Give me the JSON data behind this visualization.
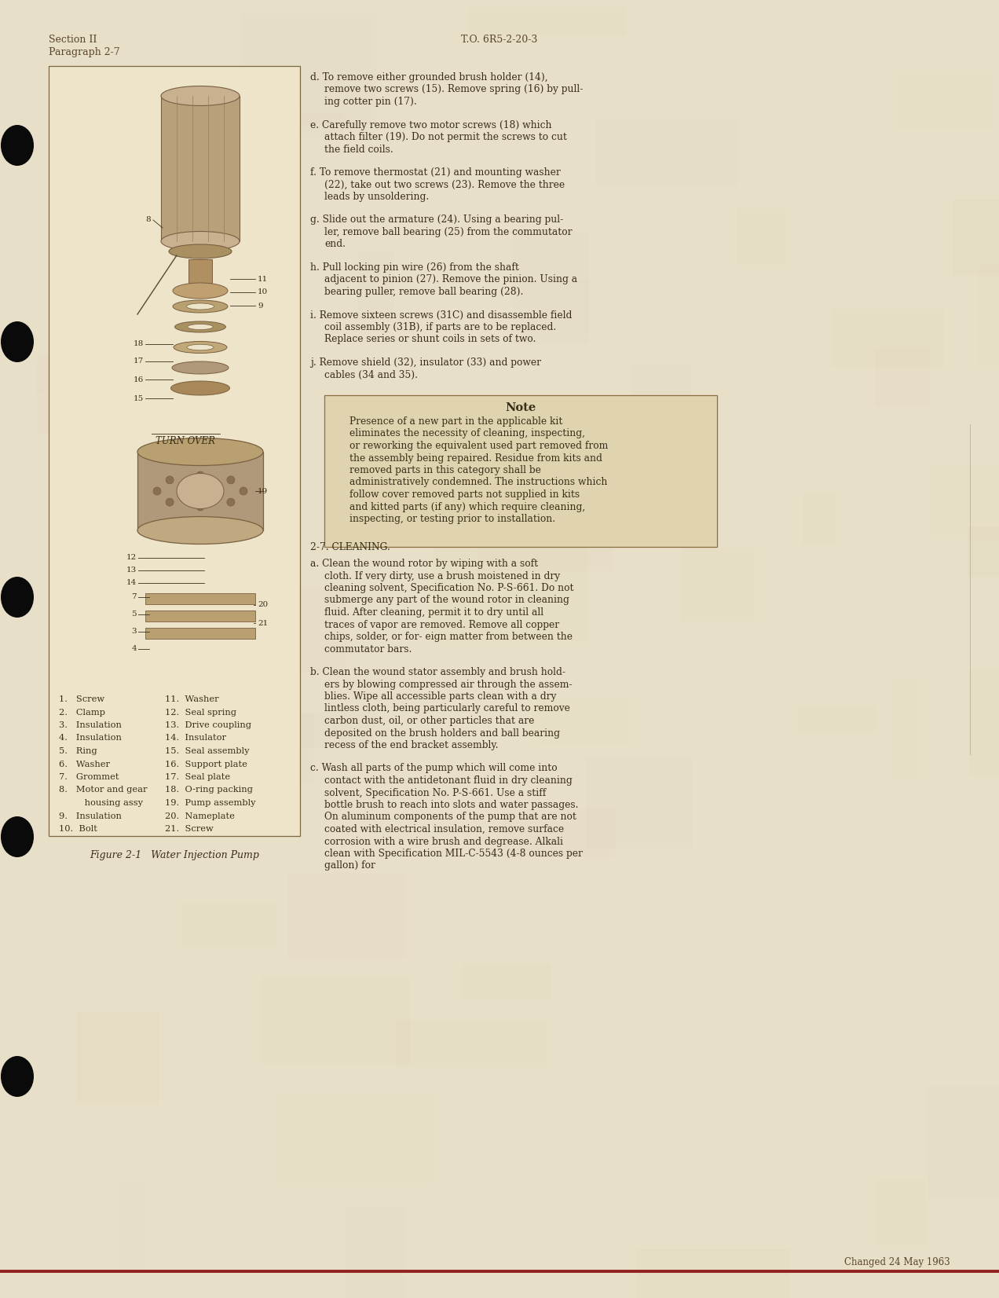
{
  "bg_color": "#e8dfc8",
  "page_bg": "#e8dfc8",
  "border_color": "#8b7355",
  "text_color": "#5a4530",
  "dark_text": "#3a2e18",
  "header_left_line1": "Section II",
  "header_left_line2": "Paragraph 2-7",
  "header_center": "T.O. 6R5-2-20-3",
  "footer_text": "Changed 24 May 1963",
  "right_col_paragraphs": [
    {
      "label": "d.",
      "text": "To remove either grounded brush holder (14), remove two screws (15). Remove spring (16) by pull-\ning cotter pin (17)."
    },
    {
      "label": "e.",
      "text": "Carefully remove two motor screws (18) which attach filter (19). Do not permit the screws to cut the field coils."
    },
    {
      "label": "f.",
      "text": "To remove thermostat (21) and mounting washer (22), take out two screws (23). Remove the three leads by unsoldering."
    },
    {
      "label": "g.",
      "text": "Slide out the armature (24). Using a bearing pul-\nler, remove ball bearing (25) from the commutator end."
    },
    {
      "label": "h.",
      "text": "Pull locking pin wire (26) from the shaft adjacent to pinion (27). Remove the pinion. Using a bearing puller, remove ball bearing (28)."
    },
    {
      "label": "i.",
      "text": "Remove sixteen screws (31C) and disassemble field coil assembly (31B), if parts are to be replaced. Replace series or shunt coils in sets of two."
    },
    {
      "label": "j.",
      "text": "Remove shield (32), insulator (33) and power cables (34 and 35)."
    }
  ],
  "note_title": "Note",
  "note_text": "Presence of a new part in the applicable kit eliminates the necessity of cleaning, inspecting, or reworking the equivalent used part removed from the assembly being repaired. Residue from kits and removed parts in this category shall be administratively condemned. The instructions which follow cover removed parts not supplied in kits and kitted parts (if any) which require cleaning, inspecting, or testing prior to installation.",
  "section_27_title": "2-7. CLEANING.",
  "cleaning_paragraphs": [
    {
      "label": "a.",
      "text": "Clean the wound rotor by wiping with a soft cloth. If very dirty, use a brush moistened in dry cleaning solvent, Specification No. P-S-661. Do not submerge any part of the wound rotor in cleaning fluid. After cleaning, permit it to dry until all traces of vapor are removed. Remove all copper chips, solder, or for-\neign matter from between the commutator bars."
    },
    {
      "label": "b.",
      "text": "Clean the wound stator assembly and brush hold-\ners by blowing compressed air through the assem-\nblies. Wipe all accessible parts clean with a dry lintless cloth, being particularly careful to remove carbon dust, oil, or other particles that are deposited on the brush holders and ball bearing recess of the end bracket assembly."
    },
    {
      "label": "c.",
      "text": "Wash all parts of the pump which will come into contact with the antidetonant fluid in dry cleaning solvent, Specification No. P-S-661. Use a stiff bottle brush to reach into slots and water passages. On aluminum components of the pump that are not coated with electrical insulation, remove surface corrosion with a wire brush and degrease. Alkali clean with Specification MIL-C-5543 (4-8 ounces per gallon) for"
    }
  ],
  "legend_items_col1": [
    "1.   Screw",
    "2.   Clamp",
    "3.   Insulation",
    "4.   Insulation",
    "5.   Ring",
    "6.   Washer",
    "7.   Grommet",
    "8.   Motor and gear",
    "         housing assy",
    "9.   Insulation",
    "10.  Bolt"
  ],
  "legend_items_col2": [
    "11.  Washer",
    "12.  Seal spring",
    "13.  Drive coupling",
    "14.  Insulator",
    "15.  Seal assembly",
    "16.  Support plate",
    "17.  Seal plate",
    "18.  O-ring packing",
    "19.  Pump assembly",
    "20.  Nameplate",
    "21.  Screw"
  ],
  "figure_caption": "Figure 2-1   Water Injection Pump"
}
